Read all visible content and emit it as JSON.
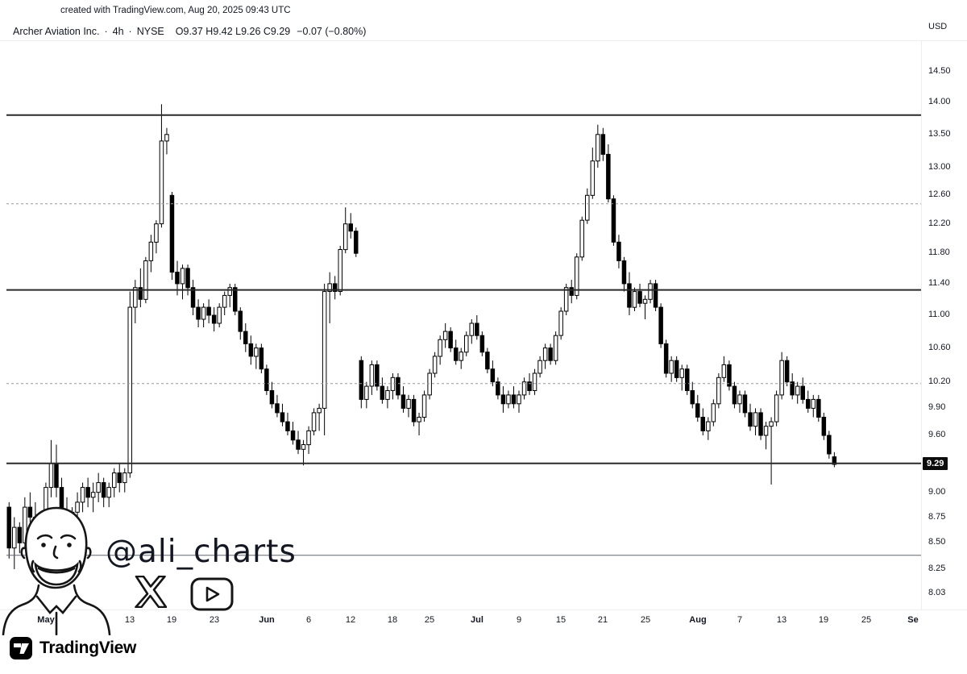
{
  "header": {
    "watermark": "created with TradingView.com, Aug 20, 2025 09:43 UTC"
  },
  "legend": {
    "title": "Archer Aviation Inc.",
    "separator": "·",
    "interval": "4h",
    "exchange": "NYSE",
    "ohlc": "O9.37  H9.42  L9.26  C9.29",
    "change": "−0.07 (−0.80%)"
  },
  "watermark_artist": {
    "handle": "@ali_charts"
  },
  "footer": {
    "brand": "TradingView"
  },
  "chart_data": {
    "type": "candlestick",
    "title": "Archer Aviation Inc.",
    "exchange": "NYSE",
    "interval": "4h",
    "currency": "USD",
    "price_scale": "log",
    "ylim": [
      7.867,
      15.02
    ],
    "price_ticks": [
      14.5,
      14.0,
      13.5,
      13.0,
      12.6,
      12.2,
      11.8,
      11.4,
      11.0,
      10.6,
      10.2,
      9.9,
      9.6,
      9.0,
      8.75,
      8.5,
      8.25,
      8.03
    ],
    "last_price": 9.29,
    "total_slots": 174,
    "time_ticks": [
      {
        "i": 7,
        "label": "May",
        "strong": true
      },
      {
        "i": 23,
        "label": "13",
        "strong": false
      },
      {
        "i": 31,
        "label": "19",
        "strong": false
      },
      {
        "i": 39,
        "label": "23",
        "strong": false
      },
      {
        "i": 49,
        "label": "Jun",
        "strong": true
      },
      {
        "i": 57,
        "label": "6",
        "strong": false
      },
      {
        "i": 65,
        "label": "12",
        "strong": false
      },
      {
        "i": 73,
        "label": "18",
        "strong": false
      },
      {
        "i": 80,
        "label": "25",
        "strong": false
      },
      {
        "i": 89,
        "label": "Jul",
        "strong": true
      },
      {
        "i": 97,
        "label": "9",
        "strong": false
      },
      {
        "i": 105,
        "label": "15",
        "strong": false
      },
      {
        "i": 113,
        "label": "21",
        "strong": false
      },
      {
        "i": 121,
        "label": "25",
        "strong": false
      },
      {
        "i": 131,
        "label": "Aug",
        "strong": true
      },
      {
        "i": 139,
        "label": "7",
        "strong": false
      },
      {
        "i": 147,
        "label": "13",
        "strong": false
      },
      {
        "i": 155,
        "label": "19",
        "strong": false
      },
      {
        "i": 163,
        "label": "25",
        "strong": false
      },
      {
        "i": 172,
        "label": "Se",
        "strong": true
      }
    ],
    "levels": [
      {
        "price": 13.8,
        "style": "solid"
      },
      {
        "price": 12.48,
        "style": "dashed"
      },
      {
        "price": 11.32,
        "style": "solid"
      },
      {
        "price": 10.18,
        "style": "dashed"
      },
      {
        "price": 9.3,
        "style": "solid"
      },
      {
        "price": 8.38,
        "style": "solid_thin"
      }
    ],
    "colors": {
      "up_fill": "#ffffff",
      "down_fill": "#000000",
      "outline": "#000000",
      "level_solid": "#2a2a2a",
      "level_dashed": "#9598a1",
      "last_price_bg": "#0c0c0c",
      "last_price_fg": "#ffffff"
    },
    "columns": [
      "open",
      "high",
      "low",
      "close"
    ],
    "candles": [
      [
        8.85,
        8.9,
        8.35,
        8.45
      ],
      [
        8.45,
        8.75,
        8.25,
        8.65
      ],
      [
        8.65,
        8.7,
        8.4,
        8.5
      ],
      [
        8.5,
        8.95,
        8.45,
        8.85
      ],
      [
        8.85,
        9.0,
        8.7,
        8.75
      ],
      [
        8.75,
        8.9,
        8.55,
        8.6
      ],
      [
        8.6,
        8.8,
        8.5,
        8.75
      ],
      [
        8.75,
        9.1,
        8.7,
        9.05
      ],
      [
        9.05,
        9.55,
        8.95,
        9.3
      ],
      [
        9.3,
        9.5,
        8.95,
        9.05
      ],
      [
        9.05,
        9.15,
        8.7,
        8.8
      ],
      [
        8.8,
        8.95,
        8.6,
        8.7
      ],
      [
        8.7,
        8.85,
        8.55,
        8.8
      ],
      [
        8.8,
        9.0,
        8.7,
        8.9
      ],
      [
        8.9,
        9.1,
        8.8,
        9.05
      ],
      [
        9.05,
        9.15,
        8.85,
        8.95
      ],
      [
        8.95,
        9.1,
        8.8,
        9.0
      ],
      [
        9.0,
        9.2,
        8.9,
        9.1
      ],
      [
        9.1,
        9.15,
        8.85,
        8.95
      ],
      [
        8.95,
        9.1,
        8.85,
        9.05
      ],
      [
        9.05,
        9.25,
        8.95,
        9.2
      ],
      [
        9.2,
        9.3,
        9.0,
        9.1
      ],
      [
        9.1,
        9.25,
        9.0,
        9.2
      ],
      [
        9.2,
        11.3,
        9.15,
        11.1
      ],
      [
        11.1,
        11.45,
        10.9,
        11.35
      ],
      [
        11.35,
        11.6,
        11.1,
        11.2
      ],
      [
        11.2,
        11.75,
        11.15,
        11.7
      ],
      [
        11.7,
        12.05,
        11.55,
        11.95
      ],
      [
        11.95,
        12.25,
        11.8,
        12.2
      ],
      [
        12.2,
        13.97,
        12.15,
        13.4
      ],
      [
        13.4,
        13.6,
        13.2,
        13.5
      ],
      [
        12.6,
        12.65,
        11.45,
        11.55
      ],
      [
        11.55,
        11.7,
        11.25,
        11.4
      ],
      [
        11.4,
        11.65,
        11.2,
        11.6
      ],
      [
        11.6,
        11.65,
        11.25,
        11.35
      ],
      [
        11.35,
        11.45,
        11.0,
        11.1
      ],
      [
        11.1,
        11.2,
        10.85,
        10.95
      ],
      [
        10.95,
        11.15,
        10.85,
        11.1
      ],
      [
        11.1,
        11.2,
        10.9,
        11.0
      ],
      [
        11.0,
        11.1,
        10.8,
        10.9
      ],
      [
        10.9,
        11.15,
        10.85,
        11.1
      ],
      [
        11.1,
        11.3,
        11.0,
        11.25
      ],
      [
        11.25,
        11.4,
        11.1,
        11.35
      ],
      [
        11.35,
        11.4,
        11.0,
        11.05
      ],
      [
        11.05,
        11.1,
        10.7,
        10.8
      ],
      [
        10.8,
        10.9,
        10.55,
        10.65
      ],
      [
        10.65,
        10.75,
        10.4,
        10.5
      ],
      [
        10.5,
        10.65,
        10.35,
        10.6
      ],
      [
        10.6,
        10.65,
        10.3,
        10.35
      ],
      [
        10.35,
        10.4,
        10.05,
        10.1
      ],
      [
        10.1,
        10.2,
        9.9,
        9.95
      ],
      [
        9.95,
        10.05,
        9.8,
        9.85
      ],
      [
        9.85,
        9.95,
        9.7,
        9.75
      ],
      [
        9.75,
        9.85,
        9.6,
        9.65
      ],
      [
        9.65,
        9.75,
        9.5,
        9.55
      ],
      [
        9.55,
        9.65,
        9.4,
        9.45
      ],
      [
        9.45,
        9.55,
        9.28,
        9.5
      ],
      [
        9.5,
        9.7,
        9.4,
        9.65
      ],
      [
        9.65,
        9.9,
        9.6,
        9.85
      ],
      [
        9.85,
        9.95,
        9.65,
        9.9
      ],
      [
        9.9,
        11.4,
        9.6,
        11.3
      ],
      [
        11.3,
        11.55,
        10.9,
        11.4
      ],
      [
        11.4,
        11.5,
        11.2,
        11.3
      ],
      [
        11.3,
        11.9,
        11.25,
        11.85
      ],
      [
        11.85,
        12.43,
        11.8,
        12.2
      ],
      [
        12.2,
        12.35,
        12.0,
        12.1
      ],
      [
        12.1,
        12.15,
        11.75,
        11.8
      ],
      [
        10.45,
        10.5,
        9.9,
        10.0
      ],
      [
        10.0,
        10.2,
        9.9,
        10.15
      ],
      [
        10.15,
        10.45,
        10.05,
        10.4
      ],
      [
        10.4,
        10.45,
        10.1,
        10.15
      ],
      [
        10.15,
        10.25,
        9.95,
        10.0
      ],
      [
        10.0,
        10.15,
        9.9,
        10.1
      ],
      [
        10.1,
        10.3,
        10.0,
        10.25
      ],
      [
        10.25,
        10.3,
        10.0,
        10.05
      ],
      [
        10.05,
        10.15,
        9.85,
        9.9
      ],
      [
        9.9,
        10.05,
        9.8,
        10.0
      ],
      [
        10.0,
        10.05,
        9.7,
        9.75
      ],
      [
        9.75,
        9.85,
        9.6,
        9.8
      ],
      [
        9.8,
        10.1,
        9.75,
        10.05
      ],
      [
        10.05,
        10.35,
        10.0,
        10.3
      ],
      [
        10.3,
        10.55,
        10.25,
        10.5
      ],
      [
        10.5,
        10.75,
        10.4,
        10.7
      ],
      [
        10.7,
        10.9,
        10.6,
        10.8
      ],
      [
        10.8,
        10.85,
        10.55,
        10.6
      ],
      [
        10.6,
        10.7,
        10.4,
        10.45
      ],
      [
        10.45,
        10.6,
        10.35,
        10.55
      ],
      [
        10.55,
        10.8,
        10.5,
        10.75
      ],
      [
        10.75,
        10.95,
        10.65,
        10.9
      ],
      [
        10.9,
        11.0,
        10.7,
        10.75
      ],
      [
        10.75,
        10.8,
        10.5,
        10.55
      ],
      [
        10.55,
        10.6,
        10.3,
        10.35
      ],
      [
        10.35,
        10.45,
        10.15,
        10.2
      ],
      [
        10.2,
        10.25,
        10.0,
        10.05
      ],
      [
        10.05,
        10.15,
        9.85,
        9.95
      ],
      [
        9.95,
        10.1,
        9.9,
        10.05
      ],
      [
        10.05,
        10.15,
        9.9,
        9.95
      ],
      [
        9.95,
        10.1,
        9.85,
        10.05
      ],
      [
        10.05,
        10.25,
        10.0,
        10.2
      ],
      [
        10.2,
        10.3,
        10.05,
        10.1
      ],
      [
        10.1,
        10.35,
        10.05,
        10.3
      ],
      [
        10.3,
        10.5,
        10.25,
        10.45
      ],
      [
        10.45,
        10.65,
        10.35,
        10.6
      ],
      [
        10.6,
        10.65,
        10.4,
        10.45
      ],
      [
        10.45,
        10.8,
        10.4,
        10.75
      ],
      [
        10.75,
        11.1,
        10.7,
        11.05
      ],
      [
        11.05,
        11.4,
        11.0,
        11.35
      ],
      [
        11.35,
        11.45,
        11.15,
        11.25
      ],
      [
        11.25,
        11.8,
        11.2,
        11.75
      ],
      [
        11.75,
        12.3,
        11.7,
        12.25
      ],
      [
        12.25,
        12.7,
        12.2,
        12.6
      ],
      [
        12.6,
        13.3,
        12.55,
        13.1
      ],
      [
        13.1,
        13.65,
        13.0,
        13.5
      ],
      [
        13.5,
        13.6,
        13.1,
        13.2
      ],
      [
        13.2,
        13.35,
        12.5,
        12.55
      ],
      [
        12.55,
        12.6,
        11.9,
        11.95
      ],
      [
        11.95,
        12.05,
        11.6,
        11.7
      ],
      [
        11.7,
        11.75,
        11.3,
        11.4
      ],
      [
        11.4,
        11.55,
        11.0,
        11.1
      ],
      [
        11.1,
        11.35,
        11.05,
        11.3
      ],
      [
        11.3,
        11.4,
        11.1,
        11.15
      ],
      [
        11.15,
        11.25,
        10.95,
        11.2
      ],
      [
        11.2,
        11.45,
        11.15,
        11.4
      ],
      [
        11.4,
        11.45,
        11.05,
        11.1
      ],
      [
        11.1,
        11.15,
        10.6,
        10.65
      ],
      [
        10.65,
        10.7,
        10.25,
        10.3
      ],
      [
        10.3,
        10.5,
        10.2,
        10.45
      ],
      [
        10.45,
        10.5,
        10.2,
        10.25
      ],
      [
        10.25,
        10.4,
        10.1,
        10.35
      ],
      [
        10.35,
        10.4,
        10.05,
        10.1
      ],
      [
        10.1,
        10.2,
        9.9,
        9.95
      ],
      [
        9.95,
        10.05,
        9.75,
        9.8
      ],
      [
        9.8,
        9.9,
        9.6,
        9.65
      ],
      [
        9.65,
        9.8,
        9.55,
        9.75
      ],
      [
        9.75,
        10.0,
        9.7,
        9.95
      ],
      [
        9.95,
        10.3,
        9.9,
        10.25
      ],
      [
        10.25,
        10.5,
        10.2,
        10.4
      ],
      [
        10.4,
        10.45,
        10.1,
        10.15
      ],
      [
        10.15,
        10.2,
        9.9,
        9.95
      ],
      [
        9.95,
        10.1,
        9.85,
        10.05
      ],
      [
        10.05,
        10.1,
        9.8,
        9.85
      ],
      [
        9.85,
        9.95,
        9.65,
        9.7
      ],
      [
        9.7,
        9.9,
        9.6,
        9.85
      ],
      [
        9.85,
        9.9,
        9.55,
        9.6
      ],
      [
        9.6,
        9.75,
        9.45,
        9.7
      ],
      [
        9.7,
        9.8,
        9.08,
        9.75
      ],
      [
        9.75,
        10.1,
        9.7,
        10.05
      ],
      [
        10.05,
        10.55,
        10.0,
        10.45
      ],
      [
        10.45,
        10.5,
        10.15,
        10.2
      ],
      [
        10.2,
        10.3,
        10.0,
        10.05
      ],
      [
        10.05,
        10.2,
        9.95,
        10.15
      ],
      [
        10.15,
        10.25,
        9.95,
        10.0
      ],
      [
        10.0,
        10.1,
        9.85,
        9.9
      ],
      [
        9.9,
        10.05,
        9.8,
        10.0
      ],
      [
        10.0,
        10.05,
        9.75,
        9.8
      ],
      [
        9.8,
        9.85,
        9.55,
        9.6
      ],
      [
        9.6,
        9.65,
        9.35,
        9.4
      ],
      [
        9.37,
        9.42,
        9.26,
        9.29
      ]
    ]
  }
}
